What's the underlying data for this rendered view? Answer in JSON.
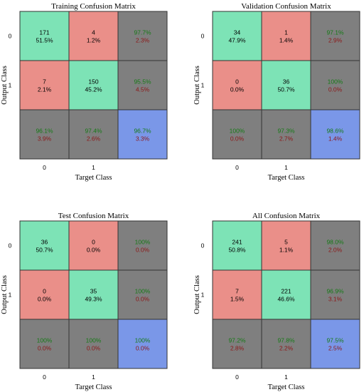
{
  "colors": {
    "correct": "#7de3b6",
    "wrong": "#ea8f89",
    "summary": "#7f7f7f",
    "overall": "#7a97e8",
    "green_text": "#157a15",
    "red_text": "#8c1717",
    "grid": "#333333"
  },
  "chart_data": [
    {
      "type": "heatmap",
      "title": "Training Confusion Matrix",
      "xlabel": "Target Class",
      "ylabel": "Output Class",
      "xticks": [
        "0",
        "1"
      ],
      "yticks": [
        "0",
        "1"
      ],
      "cells": [
        [
          {
            "count": "171",
            "pct": "51.5%"
          },
          {
            "count": "4",
            "pct": "1.2%"
          }
        ],
        [
          {
            "count": "7",
            "pct": "2.1%"
          },
          {
            "count": "150",
            "pct": "45.2%"
          }
        ]
      ],
      "row_summary": [
        [
          "97.7%",
          "2.3%"
        ],
        [
          "95.5%",
          "4.5%"
        ]
      ],
      "col_summary": [
        [
          "96.1%",
          "3.9%"
        ],
        [
          "97.4%",
          "2.6%"
        ]
      ],
      "overall": [
        "96.7%",
        "3.3%"
      ]
    },
    {
      "type": "heatmap",
      "title": "Validation Confusion Matrix",
      "xlabel": "Target Class",
      "ylabel": "Output Class",
      "xticks": [
        "0",
        "1"
      ],
      "yticks": [
        "0",
        "1"
      ],
      "cells": [
        [
          {
            "count": "34",
            "pct": "47.9%"
          },
          {
            "count": "1",
            "pct": "1.4%"
          }
        ],
        [
          {
            "count": "0",
            "pct": "0.0%"
          },
          {
            "count": "36",
            "pct": "50.7%"
          }
        ]
      ],
      "row_summary": [
        [
          "97.1%",
          "2.9%"
        ],
        [
          "100%",
          "0.0%"
        ]
      ],
      "col_summary": [
        [
          "100%",
          "0.0%"
        ],
        [
          "97.3%",
          "2.7%"
        ]
      ],
      "overall": [
        "98.6%",
        "1.4%"
      ]
    },
    {
      "type": "heatmap",
      "title": "Test Confusion Matrix",
      "xlabel": "Target Class",
      "ylabel": "Output Class",
      "xticks": [
        "0",
        "1"
      ],
      "yticks": [
        "0",
        "1"
      ],
      "cells": [
        [
          {
            "count": "36",
            "pct": "50.7%"
          },
          {
            "count": "0",
            "pct": "0.0%"
          }
        ],
        [
          {
            "count": "0",
            "pct": "0.0%"
          },
          {
            "count": "35",
            "pct": "49.3%"
          }
        ]
      ],
      "row_summary": [
        [
          "100%",
          "0.0%"
        ],
        [
          "100%",
          "0.0%"
        ]
      ],
      "col_summary": [
        [
          "100%",
          "0.0%"
        ],
        [
          "100%",
          "0.0%"
        ]
      ],
      "overall": [
        "100%",
        "0.0%"
      ]
    },
    {
      "type": "heatmap",
      "title": "All Confusion Matrix",
      "xlabel": "Target Class",
      "ylabel": "Output Class",
      "xticks": [
        "0",
        "1"
      ],
      "yticks": [
        "0",
        "1"
      ],
      "cells": [
        [
          {
            "count": "241",
            "pct": "50.8%"
          },
          {
            "count": "5",
            "pct": "1.1%"
          }
        ],
        [
          {
            "count": "7",
            "pct": "1.5%"
          },
          {
            "count": "221",
            "pct": "46.6%"
          }
        ]
      ],
      "row_summary": [
        [
          "98.0%",
          "2.0%"
        ],
        [
          "96.9%",
          "3.1%"
        ]
      ],
      "col_summary": [
        [
          "97.2%",
          "2.8%"
        ],
        [
          "97.8%",
          "2.2%"
        ]
      ],
      "overall": [
        "97.5%",
        "2.5%"
      ]
    }
  ]
}
